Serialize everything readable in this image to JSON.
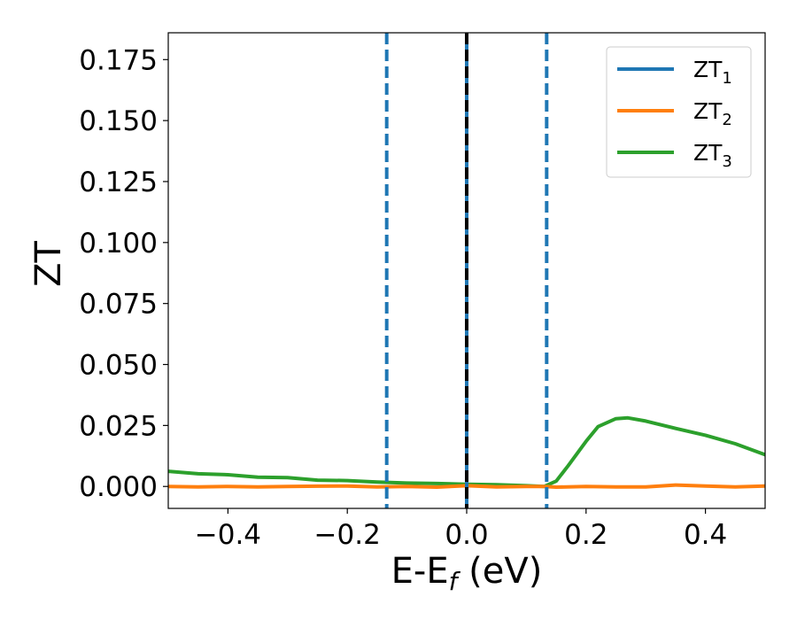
{
  "chart_data": {
    "type": "line",
    "xlabel": {
      "main": "E-E",
      "sub": "f",
      "unit": " (eV)"
    },
    "ylabel": "ZT",
    "xlim": [
      -0.5,
      0.5
    ],
    "ylim": [
      -0.009,
      0.186
    ],
    "x_ticks": [
      {
        "value": -0.4,
        "label": "−0.4"
      },
      {
        "value": -0.2,
        "label": "−0.2"
      },
      {
        "value": 0.0,
        "label": "0.0"
      },
      {
        "value": 0.2,
        "label": "0.2"
      },
      {
        "value": 0.4,
        "label": "0.4"
      }
    ],
    "y_ticks": [
      {
        "value": 0.0,
        "label": "0.000"
      },
      {
        "value": 0.025,
        "label": "0.025"
      },
      {
        "value": 0.05,
        "label": "0.050"
      },
      {
        "value": 0.075,
        "label": "0.075"
      },
      {
        "value": 0.1,
        "label": "0.100"
      },
      {
        "value": 0.125,
        "label": "0.125"
      },
      {
        "value": 0.15,
        "label": "0.150"
      },
      {
        "value": 0.175,
        "label": "0.175"
      }
    ],
    "grid": false,
    "legend_position": "top-right",
    "series": [
      {
        "name": "ZT",
        "sub": "1",
        "color": "#1f77b4",
        "x": [
          0.0,
          0.0
        ],
        "y": [
          -0.009,
          0.186
        ]
      },
      {
        "name": "ZT",
        "sub": "2",
        "color": "#ff7f0e",
        "x": [
          -0.5,
          -0.45,
          -0.4,
          -0.35,
          -0.3,
          -0.25,
          -0.2,
          -0.15,
          -0.1,
          -0.05,
          0.0,
          0.05,
          0.1,
          0.13,
          0.15,
          0.2,
          0.25,
          0.3,
          0.35,
          0.4,
          0.45,
          0.5
        ],
        "y": [
          0.0,
          -0.0002,
          0.0,
          -0.0002,
          0.0,
          0.0001,
          0.0002,
          -0.0002,
          0.0,
          -0.0003,
          0.0003,
          -0.0002,
          0.0,
          0.0,
          -0.0003,
          0.0,
          -0.0002,
          -0.0002,
          0.0006,
          0.0002,
          -0.0002,
          0.0002
        ]
      },
      {
        "name": "ZT",
        "sub": "3",
        "color": "#2ca02c",
        "x": [
          -0.5,
          -0.45,
          -0.4,
          -0.35,
          -0.3,
          -0.25,
          -0.2,
          -0.15,
          -0.1,
          -0.05,
          0.0,
          0.05,
          0.1,
          0.13,
          0.15,
          0.17,
          0.2,
          0.22,
          0.25,
          0.27,
          0.3,
          0.35,
          0.4,
          0.45,
          0.5
        ],
        "y": [
          0.0062,
          0.0052,
          0.0048,
          0.0038,
          0.0036,
          0.0026,
          0.0024,
          0.0018,
          0.0014,
          0.0012,
          0.0009,
          0.0007,
          0.0003,
          0.0,
          0.0022,
          0.0085,
          0.0185,
          0.0245,
          0.0278,
          0.0281,
          0.0268,
          0.0238,
          0.021,
          0.0175,
          0.013
        ]
      }
    ],
    "vlines": [
      {
        "x": -0.134,
        "color": "#1f77b4",
        "style": "dashed"
      },
      {
        "x": 0.0,
        "color": "#000000",
        "style": "dashed"
      },
      {
        "x": 0.134,
        "color": "#1f77b4",
        "style": "dashed"
      }
    ]
  }
}
